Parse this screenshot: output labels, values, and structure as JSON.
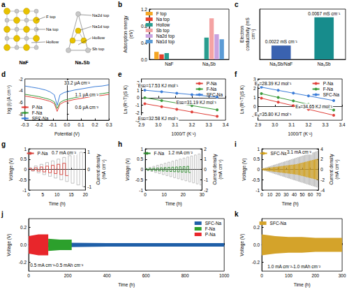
{
  "diagram": {
    "panel_label": "a",
    "structures": [
      {
        "name": "NaF",
        "sites": [
          "F top",
          "Na top",
          "Hollow"
        ]
      },
      {
        "name": "Na₃Sb",
        "sites": [
          "Na2d top",
          "Na1d top",
          "Hollow",
          "Sb top"
        ]
      }
    ]
  },
  "chart_data": [
    {
      "panel_label": "b",
      "type": "bar",
      "y_label": "Adsorption energy (eV)",
      "categories": [
        "NaF",
        "Na₃Sb"
      ],
      "series": [
        {
          "name": "F top",
          "color": "#f5a623",
          "values": [
            0.18,
            null
          ]
        },
        {
          "name": "Na top",
          "color": "#e8412c",
          "values": [
            0.12,
            null
          ]
        },
        {
          "name": "Hollow",
          "color": "#2a9d8f",
          "values": [
            0.15,
            0.52
          ]
        },
        {
          "name": "Sb top",
          "color": "#f4a3a3",
          "values": [
            null,
            0.98
          ]
        },
        {
          "name": "Na2d top",
          "color": "#c8a2e0",
          "values": [
            null,
            0.6
          ]
        },
        {
          "name": "Na1d top",
          "color": "#5b9bd5",
          "values": [
            null,
            0.48
          ]
        }
      ],
      "ylim": [
        0,
        1.2
      ],
      "yticks": [
        {
          "value": 0,
          "label": "0.0"
        },
        0.4,
        0.8,
        1.2
      ],
      "legend": "top-left",
      "grid": false
    },
    {
      "panel_label": "c",
      "type": "bar",
      "y_label": "Electron conductivity (mS cm⁻¹)",
      "categories": [
        "Na₃Sb/NaF",
        "Na₃Sb"
      ],
      "values": [
        0.0022,
        0.0067
      ],
      "value_labels": [
        "0.0022 mS cm⁻¹",
        "0.0067 mS cm⁻¹"
      ],
      "colors": [
        "#3a62b0",
        "#178c8c"
      ],
      "ylim": [
        0,
        0.008
      ],
      "data_labels": true,
      "tick_labels": "x",
      "grid": false
    },
    {
      "panel_label": "d",
      "type": "line",
      "x_label": "Potential (V)",
      "y_label": "log (i) (A cm⁻²)",
      "x": [
        -0.3,
        -0.25,
        -0.2,
        -0.15,
        -0.12,
        -0.09,
        -0.07,
        -0.05,
        -0.02,
        0.05,
        0.1,
        0.15,
        0.2,
        0.25,
        0.3
      ],
      "series": [
        {
          "name": "P-Na",
          "color": "#e0403a",
          "values": [
            -4.9,
            -5.1,
            -5.3,
            -5.6,
            -5.8,
            -6.2,
            -7.5,
            -6.3,
            -5.9,
            -5.5,
            -5.3,
            -5.1,
            -4.9,
            -4.8,
            -4.6
          ]
        },
        {
          "name": "F-Na",
          "color": "#3a9a3a",
          "values": [
            -4.6,
            -4.8,
            -5.0,
            -5.3,
            -5.5,
            -5.9,
            -7.0,
            -6.0,
            -5.6,
            -5.2,
            -5.0,
            -4.8,
            -4.6,
            -4.5,
            -4.3
          ]
        },
        {
          "name": "SFC-Na",
          "color": "#3b7dd8",
          "values": [
            -3.2,
            -3.4,
            -3.6,
            -3.9,
            -4.2,
            -4.7,
            -6.5,
            -4.7,
            -4.3,
            -3.9,
            -3.7,
            -3.5,
            -3.3,
            -3.2,
            -3.0
          ]
        }
      ],
      "xlim": [
        -0.3,
        0.3
      ],
      "xticks": [
        -0.3,
        -0.2,
        -0.1,
        {
          "value": 0,
          "label": "0.0"
        },
        0.1,
        0.2,
        0.3
      ],
      "ylim": [
        -9,
        -2
      ],
      "yticks": [
        -8,
        -6,
        -4,
        -2
      ],
      "annotations": [
        "33.2 μA cm⁻²",
        "1.1 μA cm⁻²",
        "0.6 μA cm⁻²"
      ],
      "legend": "bottom-left",
      "grid": false
    },
    {
      "panel_label": "e",
      "type": "line",
      "x_label": "1000/T (K⁻¹)",
      "y_label": "Ln (R⁻¹T)(S K)",
      "x": [
        2.92,
        3.02,
        3.11,
        3.2,
        3.35
      ],
      "series": [
        {
          "name": "P-Na",
          "color": "#e0403a",
          "marker": "circle",
          "values": [
            -0.8,
            -1.19,
            -1.54,
            -1.9,
            -2.48
          ]
        },
        {
          "name": "F-Na",
          "color": "#3a9a3a",
          "marker": "circle",
          "values": [
            0.0,
            -0.38,
            -0.71,
            -1.05,
            -1.61
          ]
        },
        {
          "name": "SFC-Na",
          "color": "#3b7dd8",
          "marker": "circle",
          "values": [
            1.0,
            0.79,
            0.6,
            0.41,
            0.09
          ]
        }
      ],
      "xlim": [
        2.9,
        3.4
      ],
      "xticks": [
        2.9,
        {
          "value": 3,
          "label": "3.0"
        },
        3.1,
        3.2,
        3.3,
        3.4
      ],
      "ylim": [
        -3,
        2.5
      ],
      "yticks": [
        -3,
        -2,
        -1,
        0,
        1,
        2
      ],
      "annotations": [
        {
          "text": "E",
          "sub": "SEI",
          "after": "=17.53 KJ mol⁻¹"
        },
        {
          "text": "E",
          "sub": "SEI",
          "after": "=31.19 KJ mol⁻¹"
        },
        {
          "text": "E",
          "sub": "SEI",
          "after": "=32.58 KJ mol⁻¹"
        }
      ],
      "legend": "top-right",
      "grid": false
    },
    {
      "panel_label": "f",
      "type": "line",
      "x_label": "1000/T (K⁻¹)",
      "y_label": "Ln (R⁻¹T)(S K)",
      "x": [
        2.92,
        3.02,
        3.11,
        3.2,
        3.35
      ],
      "series": [
        {
          "name": "P-Na",
          "color": "#e0403a",
          "marker": "circle",
          "values": [
            0.9,
            0.47,
            0.08,
            -0.31,
            -0.96
          ]
        },
        {
          "name": "F-Na",
          "color": "#3a9a3a",
          "marker": "circle",
          "values": [
            1.4,
            0.98,
            0.61,
            0.23,
            -0.39
          ]
        },
        {
          "name": "SFC-Na",
          "color": "#3b7dd8",
          "marker": "circle",
          "values": [
            2.1,
            1.76,
            1.45,
            1.15,
            0.64
          ]
        }
      ],
      "xlim": [
        2.9,
        3.4
      ],
      "xticks": [
        2.9,
        {
          "value": 3,
          "label": "3.0"
        },
        3.1,
        3.2,
        3.3,
        3.4
      ],
      "ylim": [
        -1.5,
        3
      ],
      "yticks": [
        -1,
        0,
        1,
        2,
        3
      ],
      "annotations": [
        {
          "text": "E",
          "sub": "a",
          "after": "=28.39 KJ mol⁻¹"
        },
        {
          "text": "E",
          "sub": "a",
          "after": "=34.65 KJ mol⁻¹"
        },
        {
          "text": "E",
          "sub": "a",
          "after": "=35.80 KJ mol⁻¹"
        }
      ],
      "legend": "top-right",
      "grid": false
    },
    {
      "panel_label": "g",
      "type": "wave",
      "x_label": "Time (h)",
      "y_label": "Voltage (V)",
      "y2_label": "Current density (mA cm⁻²)",
      "x": [
        0,
        2,
        4,
        6,
        8,
        10,
        12,
        14,
        16,
        18
      ],
      "series": [
        {
          "name": "P-Na",
          "color": "#d9413a",
          "values": [
            0.05,
            0.08,
            0.12,
            0.16,
            0.2,
            0.25,
            0.3,
            null,
            null,
            null
          ]
        },
        {
          "color": "#9a9a9a",
          "axis": "y2",
          "values": [
            0.1,
            0.2,
            0.3,
            0.4,
            0.5,
            0.6,
            0.7,
            0.8,
            0.9,
            1.0
          ]
        }
      ],
      "xlim": [
        0,
        20
      ],
      "xticks": [
        0,
        5,
        10,
        15,
        20
      ],
      "ylim": [
        -1,
        1
      ],
      "yticks": [
        -1,
        -0.5,
        0,
        0.5,
        1
      ],
      "y2lim": [
        -1.2,
        1.2
      ],
      "y2ticks": [
        -1,
        0,
        1
      ],
      "annotations": [
        "0.7 mA cm⁻²"
      ],
      "legend": "top-left",
      "grid": false
    },
    {
      "panel_label": "h",
      "type": "wave",
      "x_label": "Time (h)",
      "y_label": "Voltage (V)",
      "y2_label": "Current density (mA cm⁻²)",
      "x": [
        0,
        2,
        4,
        6,
        8,
        10,
        12,
        14,
        16,
        18,
        20,
        22,
        24,
        26,
        28
      ],
      "series": [
        {
          "name": "F-Na",
          "color": "#2e8b2e",
          "values": [
            0.04,
            0.05,
            0.06,
            0.07,
            0.08,
            0.09,
            0.1,
            0.11,
            0.12,
            0.13,
            0.14,
            0.15,
            null,
            null,
            null
          ]
        },
        {
          "color": "#9a9a9a",
          "axis": "y2",
          "values": [
            0.1,
            0.2,
            0.3,
            0.4,
            0.5,
            0.6,
            0.7,
            0.8,
            0.9,
            1.0,
            1.1,
            1.2,
            1.3,
            1.4,
            1.5
          ]
        }
      ],
      "xlim": [
        0,
        30
      ],
      "xticks": [
        0,
        10,
        20,
        30
      ],
      "ylim": [
        -1,
        1
      ],
      "yticks": [
        -1,
        -0.5,
        0,
        0.5,
        1
      ],
      "y2lim": [
        -2,
        2
      ],
      "y2ticks": [
        -2,
        -1,
        0,
        1,
        2
      ],
      "annotations": [
        "1.2 mA cm⁻²"
      ],
      "legend": "top-left",
      "grid": false
    },
    {
      "panel_label": "i",
      "type": "wave",
      "x_label": "Time (h)",
      "y_label": "Voltage (V)",
      "y2_label": "Current density (mA cm⁻²)",
      "x": [
        0,
        2,
        4,
        6,
        8,
        10,
        12,
        14,
        16,
        18,
        20,
        22,
        24,
        26,
        28,
        30,
        32,
        34,
        36,
        38,
        40,
        42,
        44,
        46,
        48,
        50,
        52,
        54,
        56,
        58,
        60,
        62,
        64,
        66,
        68
      ],
      "series": [
        {
          "name": "SFC-Na",
          "color": "#d4a017",
          "values": [
            0.03,
            0.04,
            0.05,
            0.06,
            0.07,
            0.08,
            0.09,
            0.1,
            0.11,
            0.12,
            0.13,
            0.14,
            0.15,
            0.16,
            0.17,
            0.18,
            0.19,
            0.2,
            0.21,
            0.22,
            0.23,
            0.24,
            0.26,
            0.28,
            0.3,
            0.32,
            0.34,
            0.36,
            0.38,
            0.4,
            0.42,
            0.44,
            0.46,
            0.48,
            0.5
          ]
        },
        {
          "color": "#9a9a9a",
          "axis": "y2",
          "values": [
            0.1,
            0.2,
            0.3,
            0.4,
            0.5,
            0.6,
            0.7,
            0.8,
            0.9,
            1.0,
            1.1,
            1.2,
            1.3,
            1.4,
            1.5,
            1.6,
            1.7,
            1.8,
            1.9,
            2.0,
            2.1,
            2.2,
            2.3,
            2.4,
            2.5,
            2.6,
            2.7,
            2.8,
            2.9,
            3.0,
            3.1,
            3.2,
            3.3,
            3.4,
            3.5
          ]
        }
      ],
      "xlim": [
        0,
        70
      ],
      "xticks": [
        0,
        10,
        20,
        30,
        40,
        50,
        60,
        70
      ],
      "ylim": [
        -1,
        1
      ],
      "yticks": [
        -1,
        -0.5,
        0,
        0.5,
        1
      ],
      "y2lim": [
        -4,
        4
      ],
      "y2ticks": [
        -4,
        -2,
        0,
        2,
        4
      ],
      "annotations": [
        "3.1 mA cm⁻²"
      ],
      "legend": "top-left",
      "grid": false
    },
    {
      "panel_label": "j",
      "type": "band",
      "x_label": "Time (h)",
      "y_label": "Voltage (V)",
      "series": [
        {
          "name": "SFC-Na",
          "color": "#1f5fa8",
          "x": [
            0,
            200,
            400,
            600,
            800,
            1000
          ],
          "upper": [
            0.03,
            0.025,
            0.02,
            0.02,
            0.02,
            0.02
          ],
          "lower": [
            -0.03,
            -0.025,
            -0.02,
            -0.02,
            -0.02,
            -0.02
          ]
        },
        {
          "name": "F-Na",
          "color": "#2ca02c",
          "x": [
            100,
            160,
            220
          ],
          "upper": [
            0.07,
            0.06,
            0.06
          ],
          "lower": [
            -0.07,
            -0.06,
            -0.06
          ]
        },
        {
          "name": "P-Na",
          "color": "#e8262b",
          "x": [
            0,
            50,
            100
          ],
          "upper": [
            0.1,
            0.12,
            0.12
          ],
          "lower": [
            -0.1,
            -0.12,
            -0.12
          ]
        }
      ],
      "xlim": [
        0,
        1000
      ],
      "xticks": [
        0,
        200,
        400,
        600,
        800,
        1000
      ],
      "ylim": [
        -0.3,
        0.3
      ],
      "yticks": [
        -0.2,
        {
          "value": 0,
          "label": "0.0"
        },
        0.2
      ],
      "annotations": [
        "0.5 mA cm⁻²-0.5 mAh cm⁻²"
      ],
      "legend": "top-right",
      "grid": false
    },
    {
      "panel_label": "k",
      "type": "band",
      "x_label": "Time (h)",
      "y_label": "Voltage (V)",
      "series": [
        {
          "name": "SFC-Na",
          "color": "#d4a32a",
          "x": [
            0,
            50,
            100,
            150,
            200,
            250,
            300
          ],
          "upper": [
            0.12,
            0.1,
            0.09,
            0.09,
            0.08,
            0.08,
            0.08
          ],
          "lower": [
            -0.12,
            -0.1,
            -0.09,
            -0.09,
            -0.08,
            -0.08,
            -0.08
          ]
        }
      ],
      "xlim": [
        0,
        300
      ],
      "xticks": [
        0,
        100,
        200,
        300
      ],
      "ylim": [
        -0.3,
        0.3
      ],
      "yticks": [
        -0.2,
        {
          "value": 0,
          "label": "0.0"
        },
        0.2
      ],
      "annotations": [
        "1.0 mA cm⁻²-1.0 mAh cm⁻²"
      ],
      "legend": "top-left",
      "grid": false
    }
  ]
}
